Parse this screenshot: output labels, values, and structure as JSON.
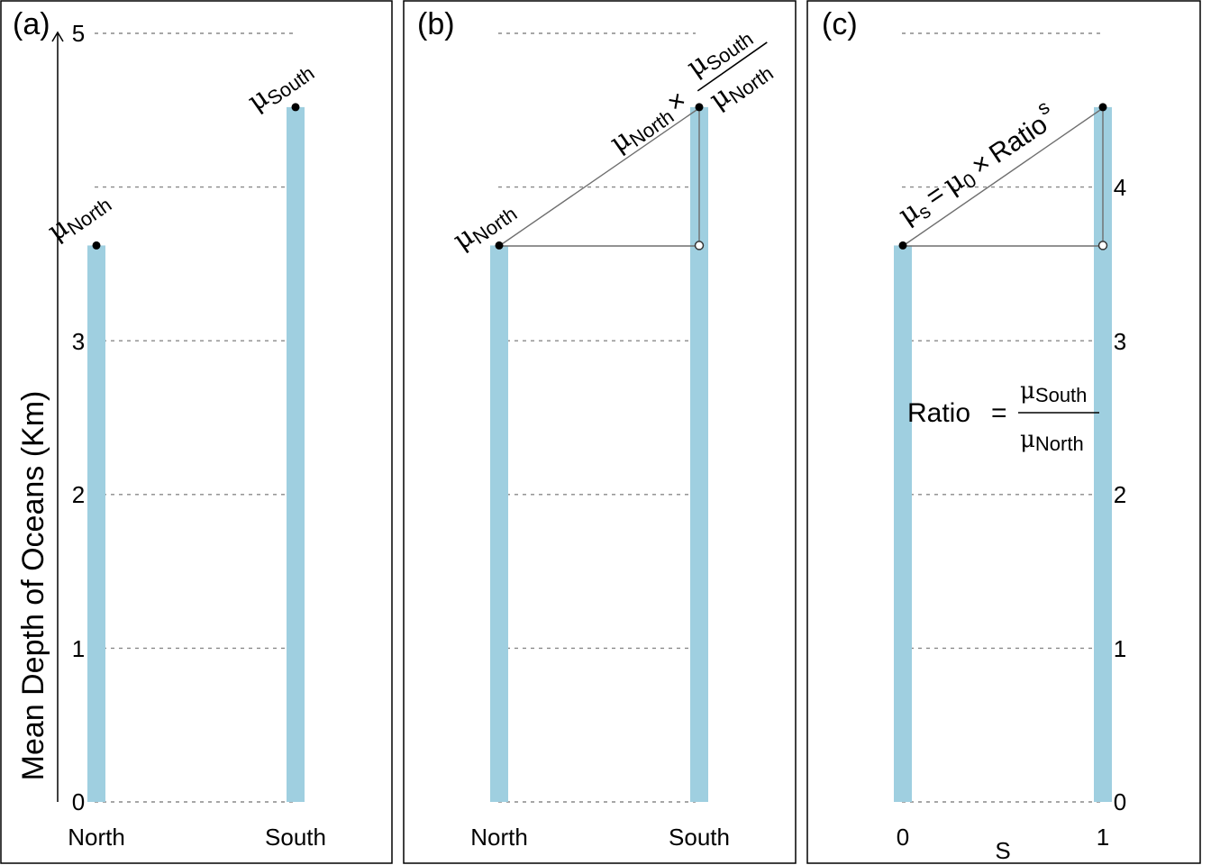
{
  "chart_data": [
    {
      "type": "bar",
      "panel_label": "(a)",
      "categories": [
        "North",
        "South"
      ],
      "values": [
        3.62,
        4.52
      ],
      "ylabel": "Mean Depth of Oceans (Km)",
      "ylim": [
        0,
        5
      ],
      "yticks": [
        "0",
        "1",
        "2",
        "3",
        "5"
      ],
      "grid": true,
      "annotations": {
        "north": {
          "mu": "μ",
          "sub": "North"
        },
        "south": {
          "mu": "μ",
          "sub": "South"
        }
      }
    },
    {
      "type": "bar",
      "panel_label": "(b)",
      "categories": [
        "North",
        "South"
      ],
      "values": [
        3.62,
        4.52
      ],
      "ylim": [
        0,
        5
      ],
      "grid": true,
      "annotations": {
        "north": {
          "mu": "μ",
          "sub": "North"
        },
        "product_mu": "μ",
        "product_sub": "North",
        "times": "×",
        "frac_num_mu": "μ",
        "frac_num_sub": "South",
        "frac_den_mu": "μ",
        "frac_den_sub": "North"
      }
    },
    {
      "type": "bar",
      "panel_label": "(c)",
      "categories": [
        "0",
        "1"
      ],
      "values": [
        3.62,
        4.52
      ],
      "xlabel": "s",
      "ylim": [
        0,
        5
      ],
      "yticks": [
        "0",
        "1",
        "2",
        "3",
        "4"
      ],
      "grid": true,
      "annotations": {
        "model_mu": "μ",
        "model_sub": "s",
        "equals": "=",
        "mu0": "μ",
        "mu0_sub": "0",
        "times": "×",
        "ratio": "Ratio",
        "ratio_exp": "s",
        "ratio_label": "Ratio",
        "ratio_eq": "=",
        "ratio_num_mu": "μ",
        "ratio_num_sub": "South",
        "ratio_den_mu": "μ",
        "ratio_den_sub": "North"
      }
    }
  ]
}
